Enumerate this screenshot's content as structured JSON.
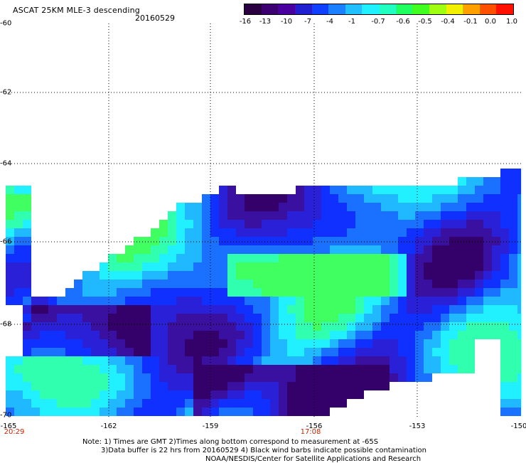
{
  "title": "ASCAT 25KM MLE-3 descending",
  "date": "20160529",
  "colorbar": {
    "colors": [
      "#2a0040",
      "#3c0070",
      "#4a00a0",
      "#2020d0",
      "#1040ff",
      "#1a80ff",
      "#20c0ff",
      "#20f0ff",
      "#20ffc0",
      "#20ff60",
      "#40ff20",
      "#a0ff10",
      "#f0f000",
      "#ffa000",
      "#ff5000",
      "#ff1000"
    ],
    "labels": [
      "-16",
      "-13",
      "-10",
      "-7",
      "-4",
      "-1",
      "-0.7",
      "-0.6",
      "-0.5",
      "-0.4",
      "-0.1",
      "0.0",
      "1.0"
    ]
  },
  "map": {
    "lat_labels": [
      "-60",
      "-62",
      "-64",
      "-66",
      "-68",
      "-70"
    ],
    "lon_labels": [
      "-165",
      "-162",
      "-159",
      "-156",
      "-153",
      "-150"
    ],
    "time_labels": [
      "20:29",
      "17:08"
    ],
    "extent": {
      "lon_min": -165,
      "lon_max": -150,
      "lat_max": -60,
      "lat_min": -70
    }
  },
  "notes": {
    "line1": "Note: 1) Times are GMT 2)Times along bottom correspond to measurement at -65S",
    "line2": "3)Data buffer is 22 hrs from 20160529 4) Black wind barbs indicate possible contamination",
    "line3": "NOAA/NESDIS/Center for Satellite Applications and Research"
  }
}
